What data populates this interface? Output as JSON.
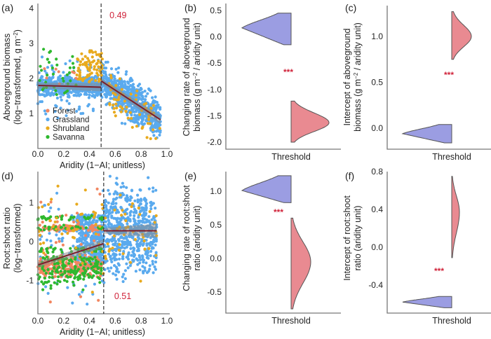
{
  "colors": {
    "Forest": "#f28660",
    "Grassland": "#5aaaee",
    "Shrubland": "#e8aa1e",
    "Savanna": "#2eb82e",
    "violin_blue": "#9b9de2",
    "violin_red": "#e98a91",
    "fit_line": "#7a1f2a",
    "annotation": "#d0233a"
  },
  "chart_data": [
    {
      "panel": "(a)",
      "type": "scatter",
      "ylabel_line1": "Aboveground  biomass",
      "ylabel_line2": "(log−transformed, g m",
      "ylabel_sup": "−2",
      "ylabel_end": ")",
      "xlabel": "Aridity (1−AI; unitless)",
      "xlim": [
        0,
        1
      ],
      "ylim": [
        0,
        4
      ],
      "xticks": [
        "0.0",
        "0.2",
        "0.4",
        "0.6",
        "0.8",
        "1.0"
      ],
      "yticks": [
        "1",
        "2",
        "3",
        "4"
      ],
      "threshold": 0.49,
      "threshold_label": "0.49",
      "legend": [
        "Forest",
        "Grassland",
        "Shrubland",
        "Savanna"
      ],
      "legend_position": "bottom-left",
      "fits": [
        {
          "x": [
            0,
            0.49
          ],
          "y": [
            1.8,
            1.75
          ]
        },
        {
          "x": [
            0.49,
            0.95
          ],
          "y": [
            1.93,
            0.82
          ]
        }
      ]
    },
    {
      "panel": "(b)",
      "type": "violin",
      "ylabel_line1": "Changing rate of aboveground",
      "ylabel_line2": "biomass (g m",
      "ylabel_sup": "−2",
      "ylabel_end": " / aridity unit)",
      "xlabel": "Threshold",
      "ylim": [
        -2.1,
        0.55
      ],
      "yticks": [
        "0.5",
        "0.0",
        "-0.5",
        "-1.0",
        "-1.5",
        "-2.0"
      ],
      "significance": "***",
      "violins": [
        {
          "side": "left",
          "color": "blue",
          "min": -0.15,
          "max": 0.45,
          "mode": 0.17
        },
        {
          "side": "right",
          "color": "red",
          "min": -2.0,
          "max": -1.22,
          "mode": -1.63
        }
      ]
    },
    {
      "panel": "(c)",
      "type": "violin",
      "ylabel_line1": "Intercept of aboveground",
      "ylabel_line2": "biomass (g m",
      "ylabel_sup": "−2",
      "ylabel_end": " / aridity unit)",
      "xlabel": "Threshold",
      "ylim": [
        -0.2,
        1.3
      ],
      "yticks": [
        "1.0",
        "0.5",
        "0.0"
      ],
      "significance": "***",
      "violins": [
        {
          "side": "left",
          "color": "blue",
          "min": -0.16,
          "max": 0.04,
          "mode": -0.06
        },
        {
          "side": "right",
          "color": "red",
          "min": 0.75,
          "max": 1.27,
          "mode": 1.0
        }
      ]
    },
    {
      "panel": "(d)",
      "type": "scatter",
      "ylabel_line1": "Root:shoot ratio",
      "ylabel_line2": "(log−transformed)",
      "xlabel": "Aridity (1−AI; unitless)",
      "xlim": [
        0,
        1
      ],
      "ylim": [
        -1.85,
        1.75
      ],
      "xticks": [
        "0.0",
        "0.2",
        "0.4",
        "0.6",
        "0.8",
        "1.0"
      ],
      "yticks": [
        "1",
        "0",
        "-1"
      ],
      "threshold": 0.51,
      "threshold_label": "0.51",
      "fits": [
        {
          "x": [
            0,
            0.51
          ],
          "y": [
            -0.6,
            -0.05
          ]
        },
        {
          "x": [
            0.51,
            0.92
          ],
          "y": [
            0.28,
            0.28
          ]
        }
      ]
    },
    {
      "panel": "(e)",
      "type": "violin",
      "ylabel_line1": "Changing rate of root:shoot",
      "ylabel_line2": "ratio (aridity unit)",
      "xlabel": "Threshold",
      "ylim": [
        -0.8,
        1.35
      ],
      "yticks": [
        "1.0",
        "0.5",
        "0.0",
        "-0.5"
      ],
      "significance": "***",
      "violins": [
        {
          "side": "left",
          "color": "blue",
          "min": 0.83,
          "max": 1.23,
          "mode": 1.01
        },
        {
          "side": "right",
          "color": "red",
          "min": -0.75,
          "max": 0.6,
          "mode": -0.05
        }
      ]
    },
    {
      "panel": "(f)",
      "type": "violin",
      "ylabel_line1": "Intercept of root:shoot",
      "ylabel_line2": "ratio (aridity unit)",
      "xlabel": "Threshold",
      "ylim": [
        -0.7,
        0.82
      ],
      "yticks": [
        "0.8",
        "0.4",
        "0.0",
        "-0.4"
      ],
      "significance": "***",
      "violins": [
        {
          "side": "left",
          "color": "blue",
          "min": -0.64,
          "max": -0.52,
          "mode": -0.58
        },
        {
          "side": "right",
          "color": "red",
          "min": -0.11,
          "max": 0.75,
          "mode": 0.37
        }
      ]
    }
  ]
}
